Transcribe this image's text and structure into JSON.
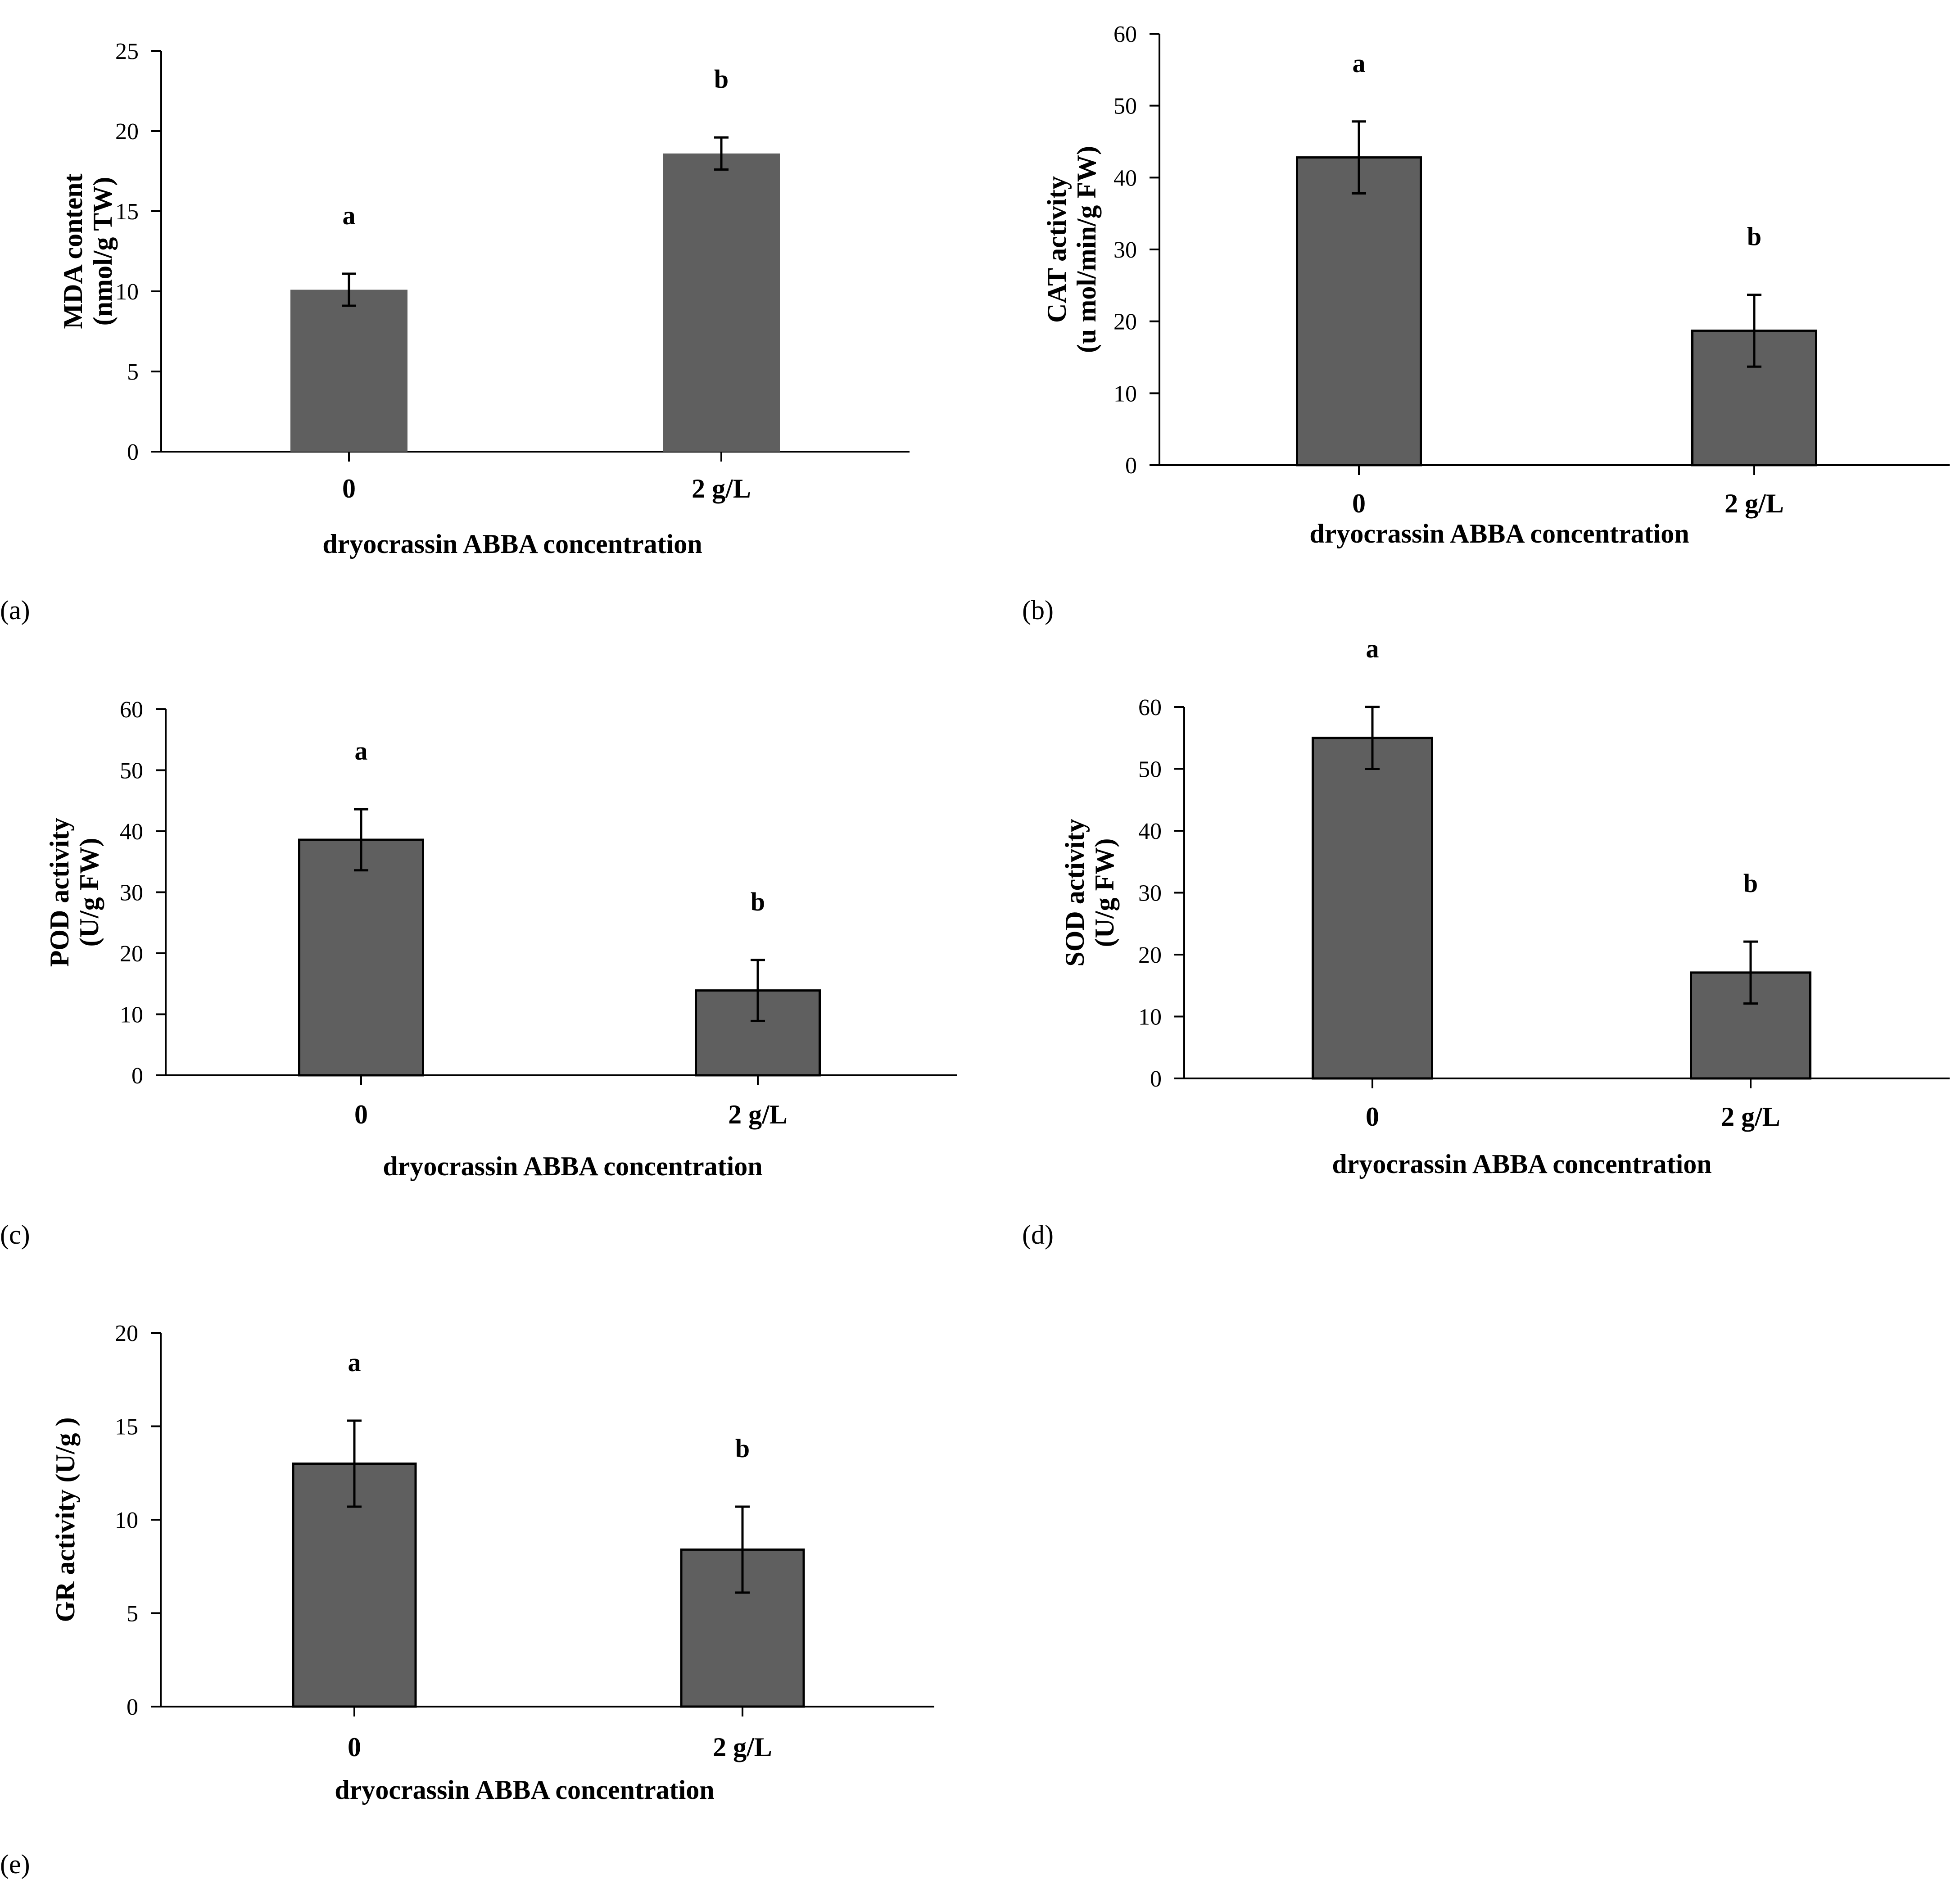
{
  "colors": {
    "bar": "#5f5f5f",
    "axis": "#000000"
  },
  "chart_data": [
    {
      "type": "bar",
      "panel_label": "(a)",
      "categories": [
        "0",
        "2 g/L"
      ],
      "values": [
        10.1,
        18.6
      ],
      "errors": [
        1.0,
        1.0
      ],
      "significance": [
        "a",
        "b"
      ],
      "xlabel": "dryocrassin ABBA concentration",
      "ylabel_lines": [
        "MDA content",
        "(nmol/g TW)"
      ],
      "ylim": [
        0,
        25
      ],
      "yticks": [
        "0",
        "5",
        "10",
        "15",
        "20",
        "25"
      ],
      "bar_outline": false
    },
    {
      "type": "bar",
      "panel_label": "(b)",
      "categories": [
        "0",
        "2 g/L"
      ],
      "values": [
        42.8,
        18.7
      ],
      "errors": [
        5.0,
        5.0
      ],
      "significance": [
        "a",
        "b"
      ],
      "xlabel": "dryocrassin ABBA concentration",
      "ylabel_lines": [
        "CAT activity",
        "(u mol/min/g FW)"
      ],
      "ylim": [
        0,
        60
      ],
      "yticks": [
        "0",
        "10",
        "20",
        "30",
        "40",
        "50",
        "60"
      ],
      "bar_outline": true
    },
    {
      "type": "bar",
      "panel_label": "(c)",
      "categories": [
        "0",
        "2 g/L"
      ],
      "values": [
        38.6,
        13.9
      ],
      "errors": [
        5.0,
        5.0
      ],
      "significance": [
        "a",
        "b"
      ],
      "xlabel": "dryocrassin ABBA concentration",
      "ylabel_lines": [
        "POD activity",
        "(U/g FW)"
      ],
      "ylim": [
        0,
        60
      ],
      "yticks": [
        "0",
        "10",
        "20",
        "30",
        "40",
        "50",
        "60"
      ],
      "bar_outline": true
    },
    {
      "type": "bar",
      "panel_label": "(d)",
      "categories": [
        "0",
        "2 g/L"
      ],
      "values": [
        55.0,
        17.1
      ],
      "errors": [
        5.0,
        5.0
      ],
      "significance": [
        "a",
        "b"
      ],
      "xlabel": "dryocrassin ABBA concentration",
      "ylabel_lines": [
        "SOD activity",
        "(U/g FW)"
      ],
      "ylim": [
        0,
        60
      ],
      "yticks": [
        "0",
        "10",
        "20",
        "30",
        "40",
        "50",
        "60"
      ],
      "bar_outline": true
    },
    {
      "type": "bar",
      "panel_label": "(e)",
      "categories": [
        "0",
        "2 g/L"
      ],
      "values": [
        13.0,
        8.4
      ],
      "errors": [
        2.3,
        2.3
      ],
      "significance": [
        "a",
        "b"
      ],
      "xlabel": "dryocrassin ABBA concentration",
      "ylabel_lines": [
        "GR activity (U/g )"
      ],
      "ylim": [
        0,
        20
      ],
      "yticks": [
        "0",
        "5",
        "10",
        "15",
        "20"
      ],
      "bar_outline": true
    }
  ]
}
